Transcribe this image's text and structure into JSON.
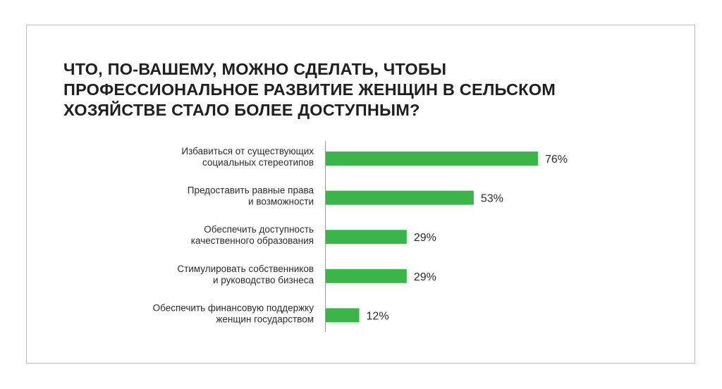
{
  "chart_data": {
    "type": "bar",
    "orientation": "horizontal",
    "title_lines": [
      "ЧТО, ПО-ВАШЕМУ, МОЖНО СДЕЛАТЬ, ЧТОБЫ",
      "ПРОФЕССИОНАЛЬНОЕ РАЗВИТИЕ ЖЕНЩИН В СЕЛЬСКОМ",
      "ХОЗЯЙСТВЕ СТАЛО БОЛЕЕ ДОСТУПНЫМ?"
    ],
    "categories": [
      [
        "Избавиться от существующих",
        "социальных стереотипов"
      ],
      [
        "Предоставить равные права",
        "и возможности"
      ],
      [
        "Обеспечить доступность",
        "качественного образования"
      ],
      [
        "Стимулировать собственников",
        "и руководство бизнеса"
      ],
      [
        "Обеспечить финансовую поддержку",
        "женщин государством"
      ]
    ],
    "values": [
      76,
      53,
      29,
      29,
      12
    ],
    "data_labels": [
      "76%",
      "53%",
      "29%",
      "29%",
      "12%"
    ],
    "unit": "%",
    "xlim": [
      0,
      100
    ],
    "grid": false,
    "bar_color": "#3bb54a"
  }
}
